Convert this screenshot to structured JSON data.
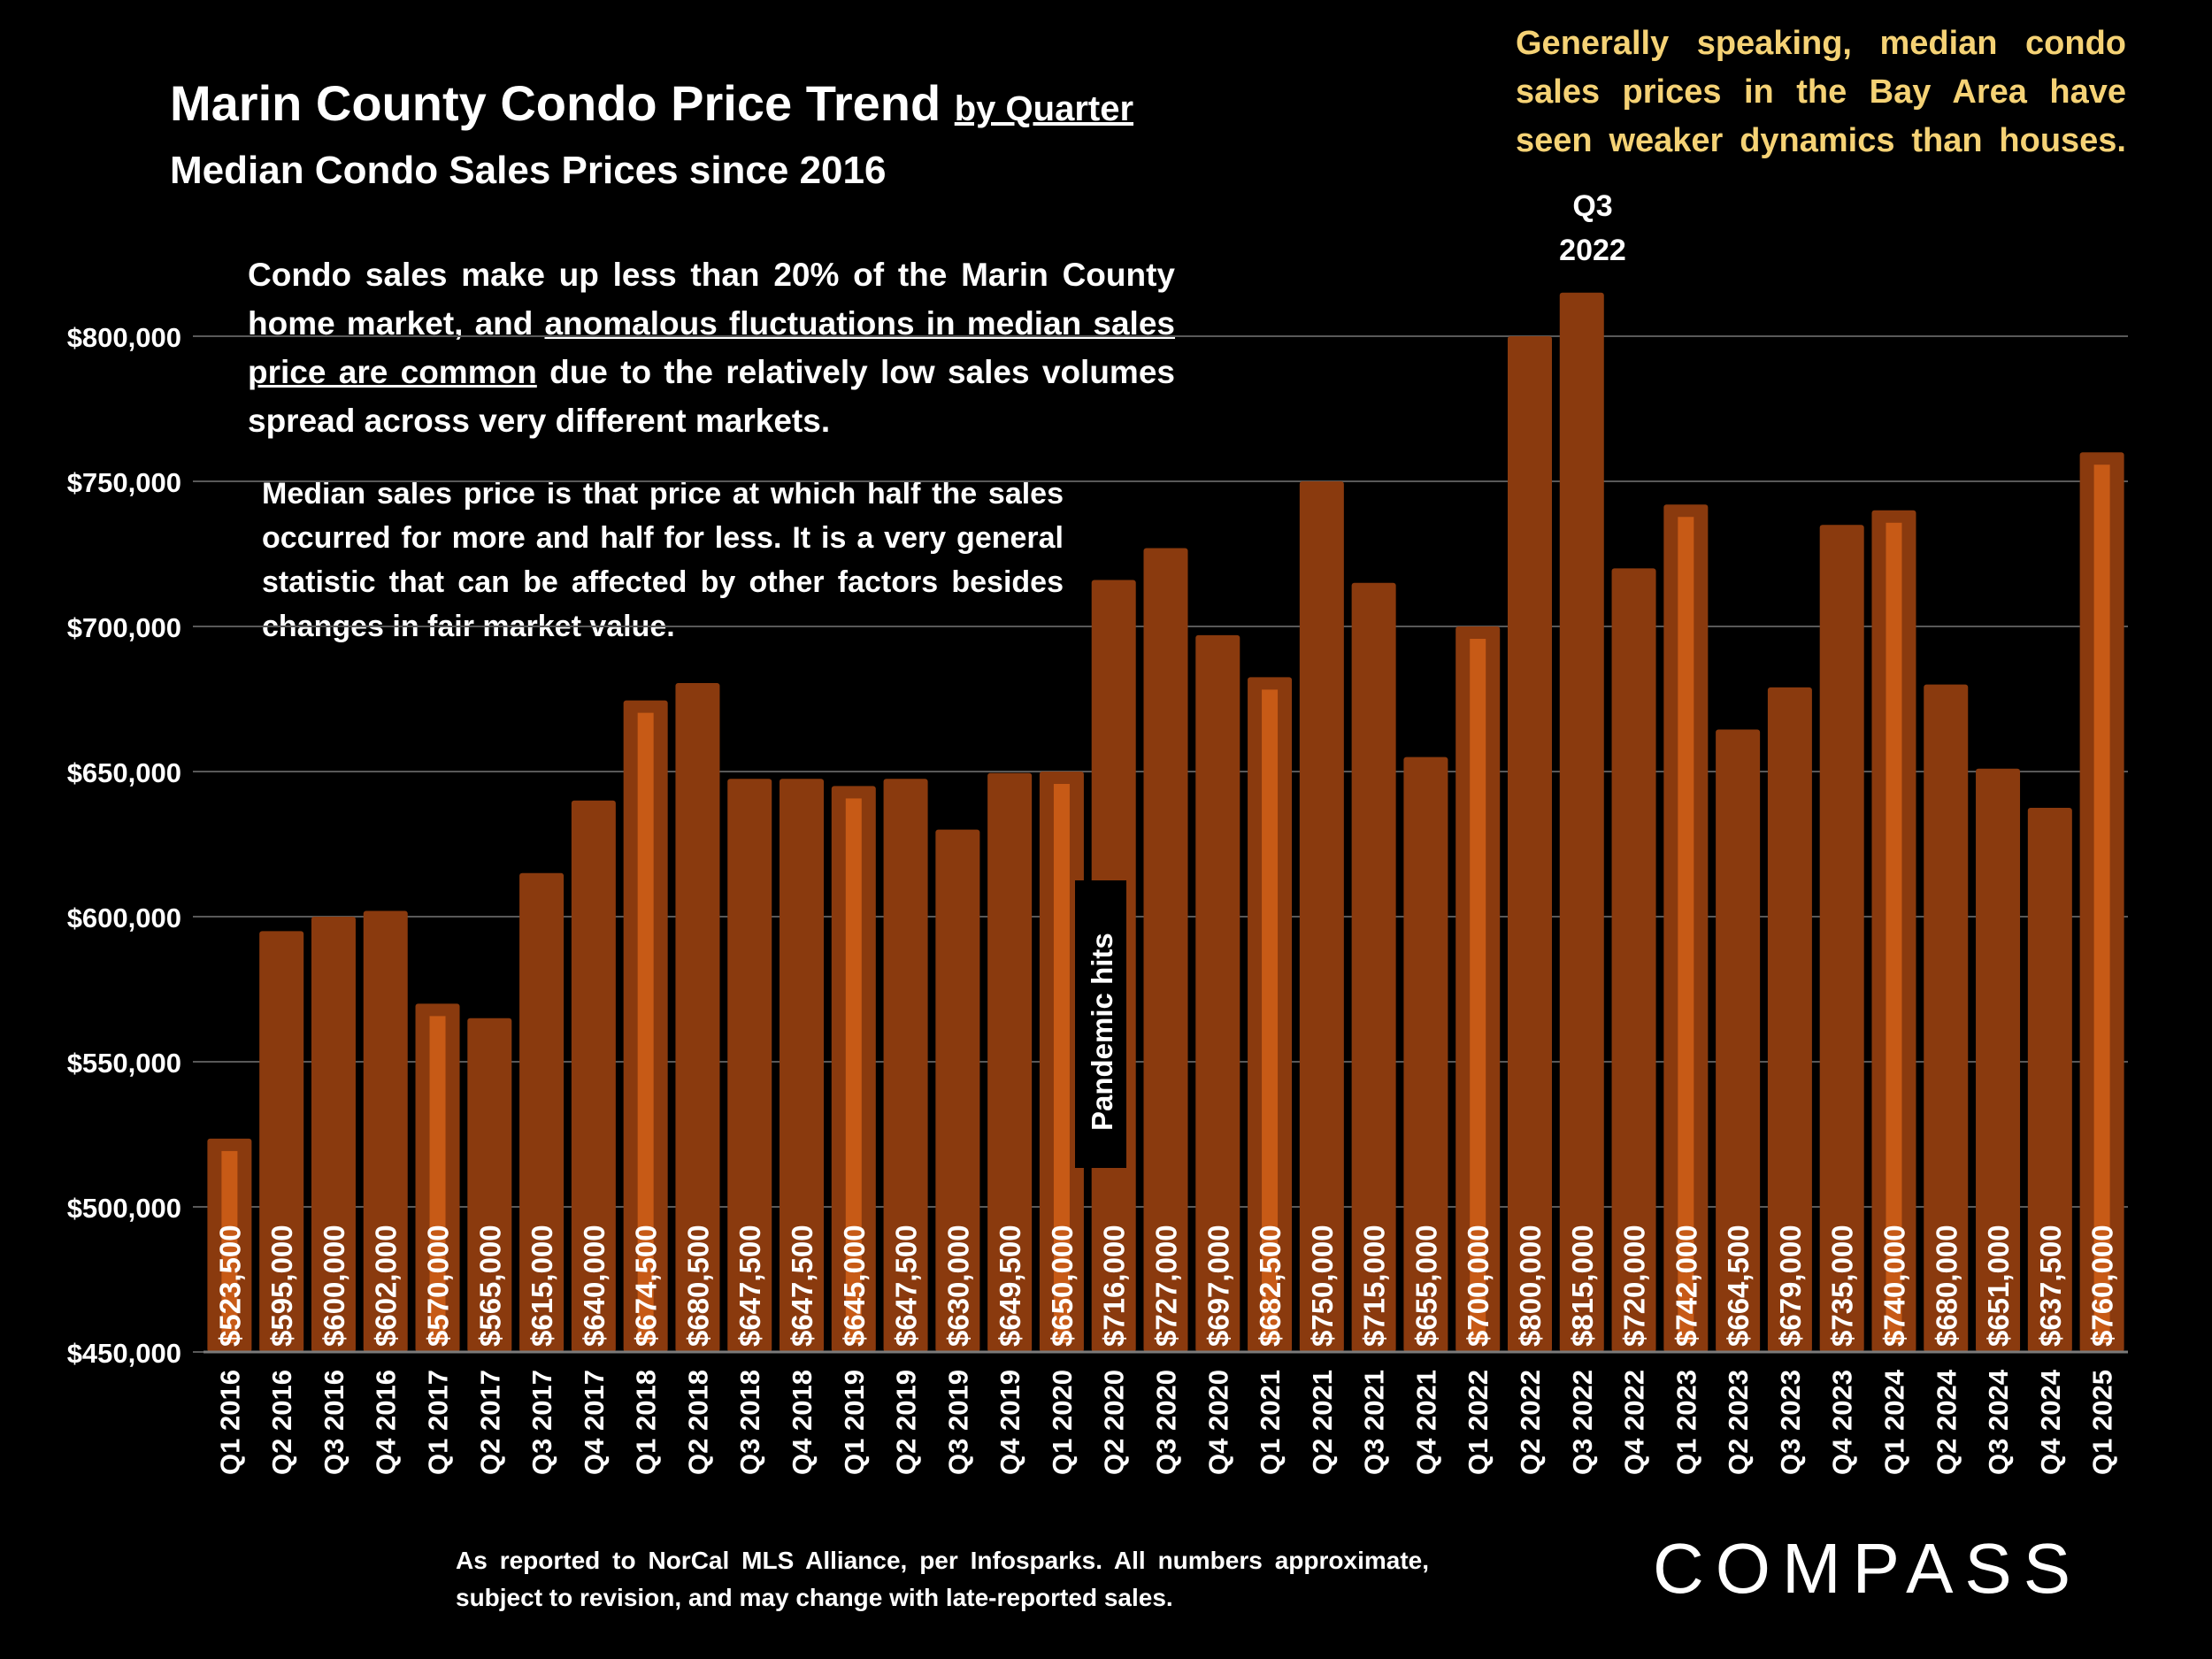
{
  "title": {
    "main": "Marin County Condo Price Trend",
    "by": "by Quarter",
    "subtitle": "Median Condo Sales Prices since 2016"
  },
  "notes": {
    "bay_area": "Generally speaking, median condo sales prices in the Bay Area have seen weaker dynamics than houses.",
    "condo_share_pre": "Condo sales make up less than 20% of the Marin County home market, and ",
    "condo_share_underlined": "anomalous fluctuations in median sales price are common",
    "condo_share_post": " due to the relatively low sales volumes spread across very different markets.",
    "median_def": "Median sales price is that price at which half the sales occurred for more and half for less. It is a very general statistic that can be affected by other factors besides changes in fair market value.",
    "peak_line1": "Q3",
    "peak_line2": "2022",
    "pandemic": "Pandemic hits",
    "footnote": "As reported to NorCal MLS Alliance, per Infosparks. All numbers approximate, subject to revision, and may change with late-reported sales."
  },
  "logo": "COMPASS",
  "colors": {
    "background": "#000000",
    "bar": "#8a3a0e",
    "bar_highlight": "#c75a16",
    "annotation_yellow": "#f5d275",
    "gridline": "#595959"
  },
  "chart_data": {
    "type": "bar",
    "title": "Marin County Condo Price Trend by Quarter",
    "subtitle": "Median Condo Sales Prices since 2016",
    "xlabel": "",
    "ylabel": "",
    "ylim": [
      450000,
      800000
    ],
    "yticks": [
      450000,
      500000,
      550000,
      600000,
      650000,
      700000,
      750000,
      800000
    ],
    "ytick_labels": [
      "$450,000",
      "$500,000",
      "$550,000",
      "$600,000",
      "$650,000",
      "$700,000",
      "$750,000",
      "$800,000"
    ],
    "grid": true,
    "categories": [
      "Q1 2016",
      "Q2 2016",
      "Q3 2016",
      "Q4 2016",
      "Q1 2017",
      "Q2 2017",
      "Q3 2017",
      "Q4 2017",
      "Q1 2018",
      "Q2 2018",
      "Q3 2018",
      "Q4 2018",
      "Q1 2019",
      "Q2 2019",
      "Q3 2019",
      "Q4 2019",
      "Q1 2020",
      "Q2 2020",
      "Q3 2020",
      "Q4 2020",
      "Q1 2021",
      "Q2 2021",
      "Q3 2021",
      "Q4 2021",
      "Q1 2022",
      "Q2 2022",
      "Q3 2022",
      "Q4 2022",
      "Q1 2023",
      "Q2 2023",
      "Q3 2023",
      "Q4 2023",
      "Q1 2024",
      "Q2 2024",
      "Q3 2024",
      "Q4 2024",
      "Q1 2025"
    ],
    "values": [
      523500,
      595000,
      600000,
      602000,
      570000,
      565000,
      615000,
      640000,
      674500,
      680500,
      647500,
      647500,
      645000,
      647500,
      630000,
      649500,
      650000,
      716000,
      727000,
      697000,
      682500,
      750000,
      715000,
      655000,
      700000,
      800000,
      815000,
      720000,
      742000,
      664500,
      679000,
      735000,
      740000,
      680000,
      651000,
      637500,
      760000
    ],
    "value_labels": [
      "$523,500",
      "$595,000",
      "$600,000",
      "$602,000",
      "$570,000",
      "$565,000",
      "$615,000",
      "$640,000",
      "$674,500",
      "$680,500",
      "$647,500",
      "$647,500",
      "$645,000",
      "$647,500",
      "$630,000",
      "$649,500",
      "$650,000",
      "$716,000",
      "$727,000",
      "$697,000",
      "$682,500",
      "$750,000",
      "$715,000",
      "$655,000",
      "$700,000",
      "$800,000",
      "$815,000",
      "$720,000",
      "$742,000",
      "$664,500",
      "$679,000",
      "$735,000",
      "$740,000",
      "$680,000",
      "$651,000",
      "$637,500",
      "$760,000"
    ],
    "highlighted": [
      "Q1 2016",
      "Q1 2017",
      "Q1 2018",
      "Q1 2019",
      "Q1 2020",
      "Q1 2021",
      "Q1 2022",
      "Q1 2023",
      "Q1 2024",
      "Q1 2025"
    ]
  }
}
